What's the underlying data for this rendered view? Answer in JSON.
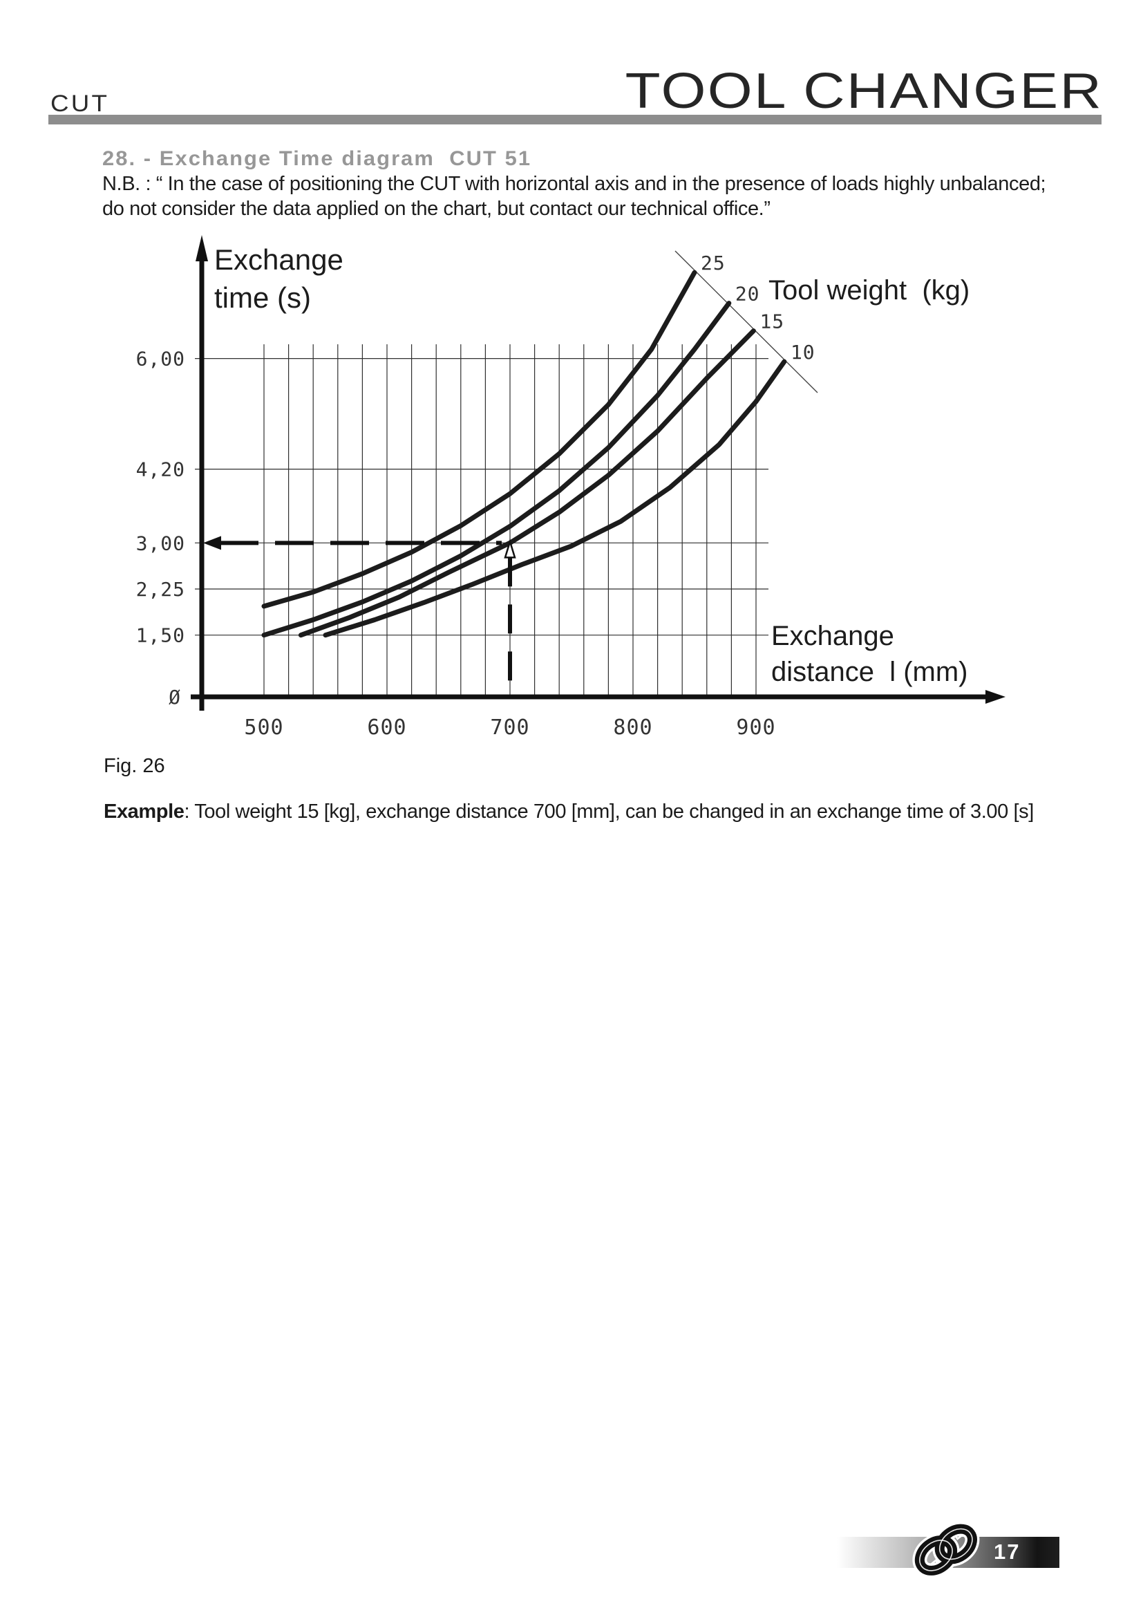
{
  "page": {
    "header": {
      "product_code": "CUT",
      "title": "TOOL CHANGER"
    },
    "section": {
      "heading": "28. - Exchange Time diagram  CUT 51",
      "note_line1": "N.B. : “ In the case of positioning the CUT with horizontal axis and in the presence of loads highly unbalanced;",
      "note_line2": "do not consider the data applied on the chart, but contact our technical office.”"
    },
    "figure": {
      "caption": "Fig. 26",
      "example_label": "Example",
      "example_text": ": Tool weight 15 [kg], exchange distance 700 [mm], can be changed in an exchange time of 3.00 [s]"
    },
    "footer": {
      "page_number": "17"
    }
  },
  "chart_data": {
    "type": "line",
    "title": "Exchange Time diagram CUT 51",
    "y_axis_title_line1": "Exchange",
    "y_axis_title_line2": "time (s)",
    "x_axis_title_line1": "Exchange",
    "x_axis_title_line2": "distance  l (mm)",
    "legend_title": "Tool weight  (kg)",
    "x_unit": "mm",
    "y_unit": "s",
    "xlim": [
      450,
      960
    ],
    "ylim": [
      0,
      8
    ],
    "grid": {
      "on": true,
      "from_mm": 500,
      "to_mm": 900,
      "step_mm": 20
    },
    "x_axis": {
      "ticks": [
        500,
        600,
        700,
        800,
        900
      ],
      "tick_labels": [
        "500",
        "600",
        "700",
        "800",
        "900"
      ]
    },
    "y_axis": {
      "ticks": [
        6.0,
        4.2,
        3.0,
        2.25,
        1.5,
        0
      ],
      "tick_labels": [
        "6,00",
        "4,20",
        "3,00",
        "2,25",
        "1,50",
        "Ø"
      ]
    },
    "series": [
      {
        "name": "25",
        "tool_weight_kg": 25,
        "points": [
          [
            500,
            1.97
          ],
          [
            540,
            2.2
          ],
          [
            580,
            2.5
          ],
          [
            620,
            2.85
          ],
          [
            660,
            3.28
          ],
          [
            700,
            3.8
          ],
          [
            740,
            4.45
          ],
          [
            780,
            5.25
          ],
          [
            815,
            6.15
          ],
          [
            850,
            7.4
          ]
        ]
      },
      {
        "name": "20",
        "tool_weight_kg": 20,
        "points": [
          [
            500,
            1.5
          ],
          [
            540,
            1.75
          ],
          [
            580,
            2.04
          ],
          [
            620,
            2.38
          ],
          [
            660,
            2.79
          ],
          [
            700,
            3.27
          ],
          [
            740,
            3.85
          ],
          [
            780,
            4.55
          ],
          [
            820,
            5.4
          ],
          [
            850,
            6.15
          ],
          [
            878,
            6.9
          ]
        ]
      },
      {
        "name": "15",
        "tool_weight_kg": 15,
        "points": [
          [
            530,
            1.5
          ],
          [
            570,
            1.79
          ],
          [
            610,
            2.12
          ],
          [
            650,
            2.52
          ],
          [
            700,
            3.0
          ],
          [
            740,
            3.5
          ],
          [
            780,
            4.1
          ],
          [
            820,
            4.82
          ],
          [
            860,
            5.68
          ],
          [
            898,
            6.45
          ]
        ]
      },
      {
        "name": "10",
        "tool_weight_kg": 10,
        "points": [
          [
            550,
            1.5
          ],
          [
            590,
            1.75
          ],
          [
            630,
            2.03
          ],
          [
            670,
            2.33
          ],
          [
            710,
            2.65
          ],
          [
            750,
            2.95
          ],
          [
            790,
            3.35
          ],
          [
            830,
            3.9
          ],
          [
            870,
            4.6
          ],
          [
            900,
            5.3
          ],
          [
            923,
            5.95
          ]
        ]
      }
    ],
    "annotation": {
      "tool_weight_kg": 15,
      "exchange_distance_mm": 700,
      "exchange_time_s": 3.0
    }
  }
}
